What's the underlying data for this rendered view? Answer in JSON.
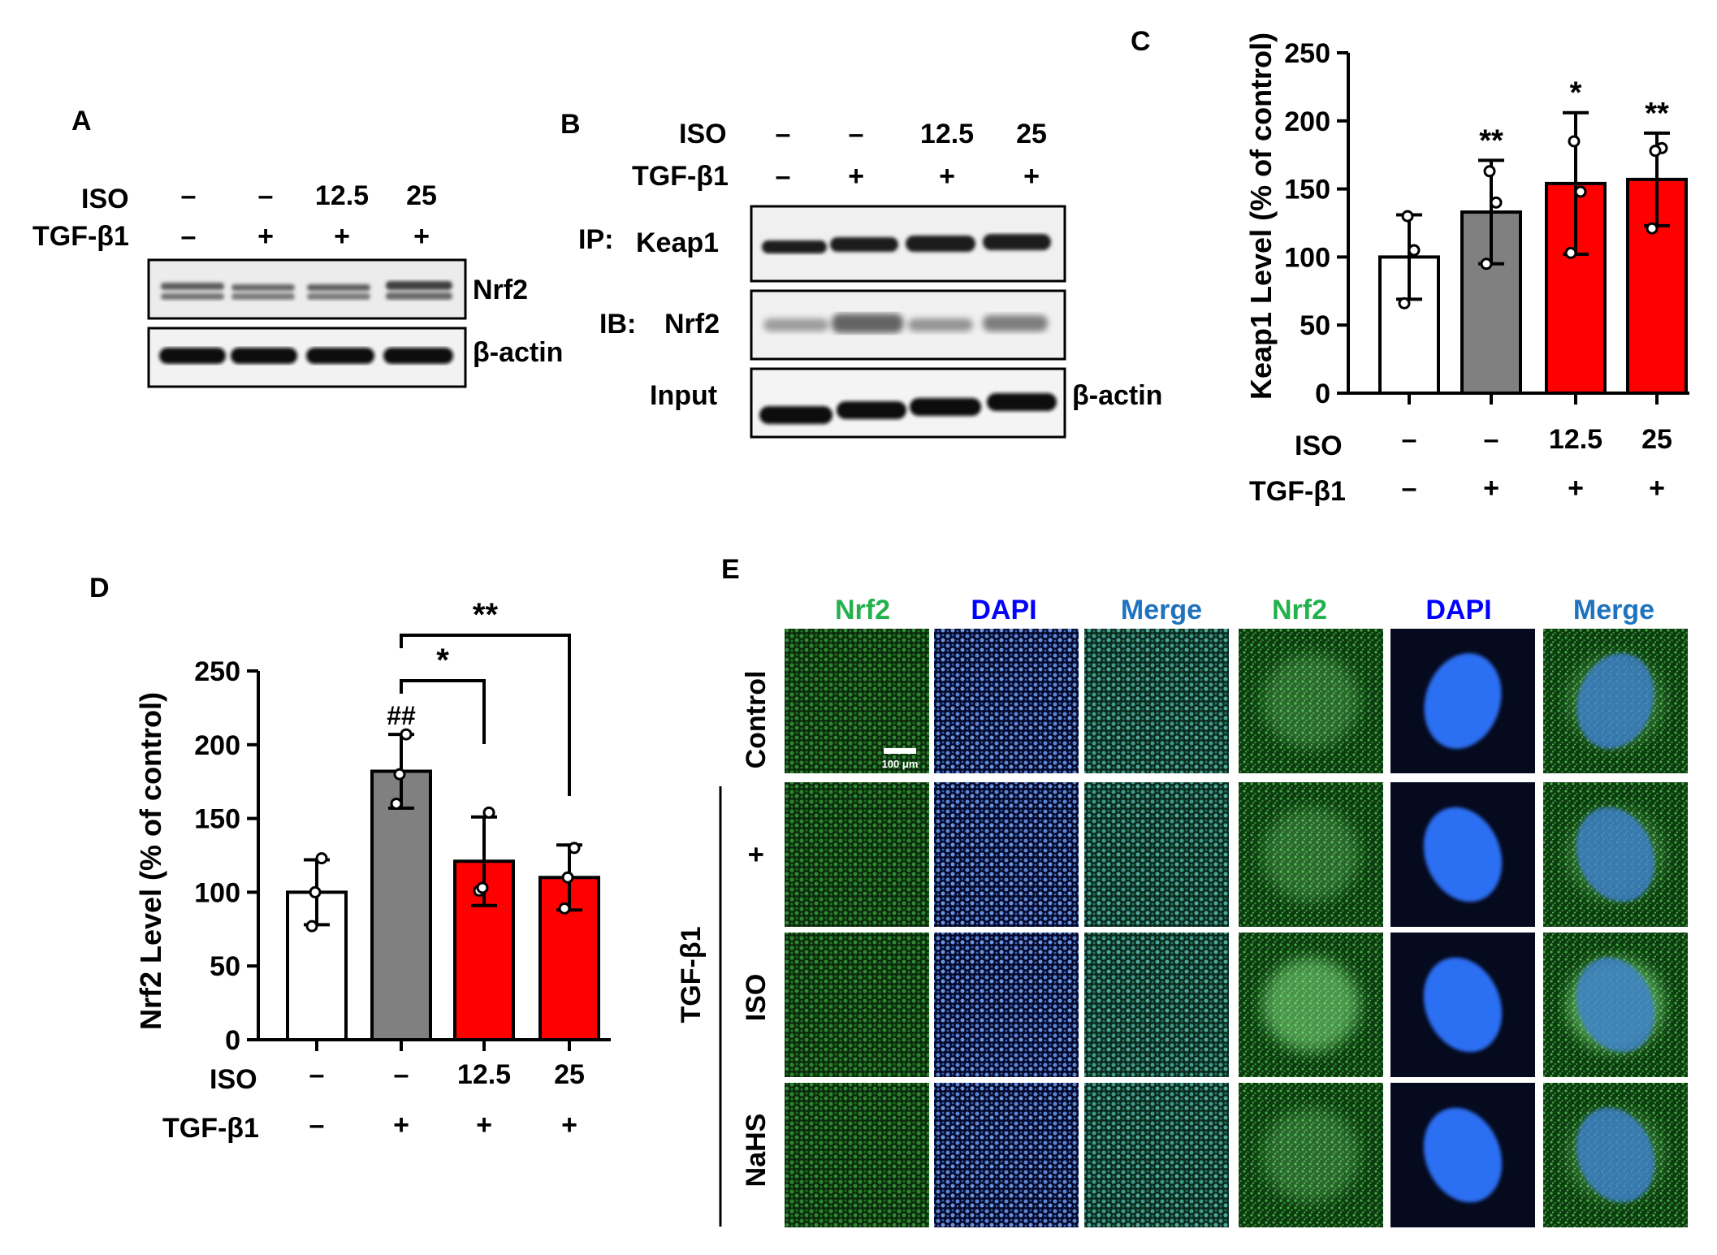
{
  "panel_letters": {
    "a": "A",
    "b": "B",
    "c": "C",
    "d": "D",
    "e": "E"
  },
  "treatments": {
    "iso_label": "ISO",
    "tgf_label": "TGF-β1",
    "iso_values": [
      "–",
      "–",
      "12.5",
      "25"
    ],
    "tgf_values": [
      "–",
      "+",
      "+",
      "+"
    ]
  },
  "blots": {
    "a_band_labels": [
      "Nrf2",
      "β-actin"
    ],
    "b_row_prefixes": [
      "IP:",
      "IB:",
      "Input"
    ],
    "b_band_labels": [
      "Keap1",
      "Nrf2",
      "β-actin"
    ]
  },
  "chart_data": [
    {
      "panel": "C",
      "type": "bar",
      "ylabel": "Keap1 Level (% of control)",
      "ylim": [
        0,
        250
      ],
      "yticks": [
        0,
        50,
        100,
        150,
        200,
        250
      ],
      "categories": [
        "– / –",
        "– / +",
        "12.5 / +",
        "25 / +"
      ],
      "values": [
        100,
        133,
        154,
        157
      ],
      "error": [
        31,
        38,
        52,
        34
      ],
      "points": [
        [
          66,
          105,
          130
        ],
        [
          95,
          140,
          163
        ],
        [
          103,
          148,
          185
        ],
        [
          121,
          180,
          178
        ]
      ],
      "colors": [
        "#ffffff",
        "#808080",
        "#ff0000",
        "#ff0000"
      ],
      "annotations": [
        "",
        "**",
        "*",
        "**"
      ]
    },
    {
      "panel": "D",
      "type": "bar",
      "ylabel": "Nrf2 Level (% of control)",
      "ylim": [
        0,
        250
      ],
      "yticks": [
        0,
        50,
        100,
        150,
        200,
        250
      ],
      "categories": [
        "– / –",
        "– / +",
        "12.5 / +",
        "25 / +"
      ],
      "values": [
        100,
        182,
        121,
        110
      ],
      "error": [
        22,
        25,
        30,
        22
      ],
      "points": [
        [
          77,
          123,
          100
        ],
        [
          160,
          207,
          180
        ],
        [
          101,
          154,
          103
        ],
        [
          89,
          130,
          110
        ]
      ],
      "colors": [
        "#ffffff",
        "#808080",
        "#ff0000",
        "#ff0000"
      ],
      "annotations": [
        "",
        "##",
        "",
        ""
      ],
      "brackets": [
        {
          "from": 1,
          "to": 2,
          "label": "*"
        },
        {
          "from": 1,
          "to": 3,
          "label": "**"
        }
      ]
    }
  ],
  "microscopy": {
    "column_headers": [
      "Nrf2",
      "DAPI",
      "Merge",
      "Nrf2",
      "DAPI",
      "Merge"
    ],
    "header_colors": [
      "#22b14c",
      "#0000ff",
      "#1e73be",
      "#22b14c",
      "#0000ff",
      "#1e73be"
    ],
    "row_labels": [
      "Control",
      "+",
      "ISO",
      "NaHS"
    ],
    "group_label": "TGF-β1",
    "scale_bar": "100 μm"
  }
}
